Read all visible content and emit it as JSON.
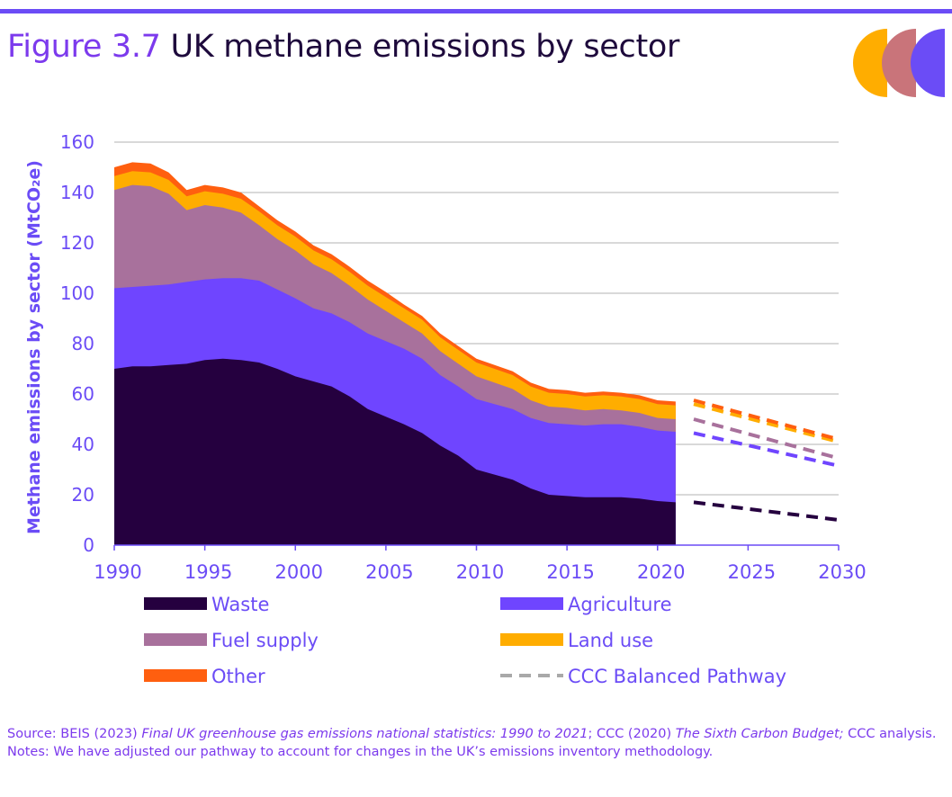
{
  "figure_label": "Figure 3.7",
  "title": "UK methane emissions by sector",
  "source": {
    "prefix": "Source: BEIS (2023) ",
    "ref1": "Final UK greenhouse gas emissions national statistics: 1990 to 2021",
    "mid": "; CCC (2020) ",
    "ref2": "The Sixth Carbon Budget;",
    "suffix": " CCC analysis."
  },
  "notes": "Notes: We have adjusted our pathway to account for changes in the UK’s emissions inventory methodology.",
  "colors": {
    "waste": "#25003f",
    "agriculture": "#6f45ff",
    "fuel_supply": "#a8719c",
    "land_use": "#ffad00",
    "other": "#ff5f0f",
    "pathway": "#a9a9a9",
    "axis_text": "#6b4cf6",
    "grid": "#b3b3b3",
    "logo": [
      "#ffad00",
      "#c9747a",
      "#6b4cf6"
    ]
  },
  "chart_data": {
    "type": "area",
    "ylabel": "Methane emissions by sector (MtCO₂e)",
    "xlabel": "",
    "xlim": [
      1990,
      2030
    ],
    "ylim": [
      0,
      160
    ],
    "xticks": [
      1990,
      1995,
      2000,
      2005,
      2010,
      2015,
      2020,
      2025,
      2030
    ],
    "yticks": [
      0,
      20,
      40,
      60,
      80,
      100,
      120,
      140,
      160
    ],
    "grid": true,
    "legend_position": "bottom",
    "x": [
      1990,
      1991,
      1992,
      1993,
      1994,
      1995,
      1996,
      1997,
      1998,
      1999,
      2000,
      2001,
      2002,
      2003,
      2004,
      2005,
      2006,
      2007,
      2008,
      2009,
      2010,
      2011,
      2012,
      2013,
      2014,
      2015,
      2016,
      2017,
      2018,
      2019,
      2020,
      2021
    ],
    "series": [
      {
        "name": "Waste",
        "key": "waste",
        "values": [
          70,
          71,
          71,
          71.5,
          72,
          73.5,
          74,
          73.5,
          72.5,
          70,
          67,
          65,
          63,
          59,
          54,
          51,
          48,
          44.5,
          39.5,
          35.5,
          30,
          28,
          26,
          22.5,
          20,
          19.5,
          19,
          19,
          19,
          18.5,
          17.5,
          17
        ]
      },
      {
        "name": "Agriculture",
        "key": "agriculture",
        "values": [
          32,
          31.5,
          32,
          32,
          32.5,
          32,
          32,
          32.5,
          32.5,
          31.5,
          31,
          29,
          29,
          29.5,
          30,
          30,
          30,
          29.5,
          28,
          27.5,
          28,
          28,
          28,
          28,
          28.5,
          28.5,
          28.5,
          29,
          29,
          28.5,
          28,
          28
        ]
      },
      {
        "name": "Fuel supply",
        "key": "fuel_supply",
        "values": [
          39,
          40.5,
          39.5,
          36,
          28.5,
          29.5,
          28,
          26,
          22,
          20,
          19,
          17.5,
          16,
          14.5,
          13.5,
          12,
          10.5,
          10,
          9.5,
          9,
          9,
          8.5,
          8,
          7,
          6.5,
          6.5,
          6,
          6,
          5.5,
          5.5,
          5,
          5
        ]
      },
      {
        "name": "Land use",
        "key": "land_use",
        "values": [
          5.5,
          5.5,
          5.5,
          5.5,
          5.5,
          5.5,
          5.5,
          5.5,
          5.5,
          5.5,
          5.5,
          5.5,
          5.5,
          5.5,
          5.5,
          5.5,
          5.5,
          5.5,
          5.5,
          5.5,
          5.5,
          5.5,
          5.5,
          5.5,
          5.5,
          5.5,
          5.5,
          5.5,
          5.5,
          5.5,
          5.5,
          5.5
        ]
      },
      {
        "name": "Other",
        "key": "other",
        "values": [
          3.5,
          3.5,
          3.5,
          3,
          2.5,
          2.5,
          2.5,
          2.5,
          2,
          2,
          2,
          2,
          2,
          2,
          2,
          2,
          1.5,
          1.5,
          1.5,
          1.5,
          1.5,
          1.5,
          1.5,
          1.5,
          1.5,
          1.5,
          1.5,
          1.5,
          1.5,
          1.5,
          1.5,
          1.5
        ]
      }
    ],
    "pathway": {
      "name": "CCC Balanced Pathway",
      "x": [
        2022,
        2030
      ],
      "lines": [
        {
          "key": "waste",
          "values": [
            17,
            10
          ]
        },
        {
          "key": "agriculture",
          "values": [
            44.5,
            31.5
          ]
        },
        {
          "key": "fuel_supply",
          "values": [
            50,
            34.5
          ]
        },
        {
          "key": "land_use",
          "values": [
            56,
            41
          ]
        },
        {
          "key": "other",
          "values": [
            57.5,
            42
          ]
        }
      ]
    },
    "legend": [
      {
        "label": "Waste",
        "key": "waste",
        "style": "swatch"
      },
      {
        "label": "Agriculture",
        "key": "agriculture",
        "style": "swatch"
      },
      {
        "label": "Fuel supply",
        "key": "fuel_supply",
        "style": "swatch"
      },
      {
        "label": "Land use",
        "key": "land_use",
        "style": "swatch"
      },
      {
        "label": "Other",
        "key": "other",
        "style": "swatch"
      },
      {
        "label": "CCC Balanced Pathway",
        "key": "pathway",
        "style": "dash"
      }
    ]
  }
}
